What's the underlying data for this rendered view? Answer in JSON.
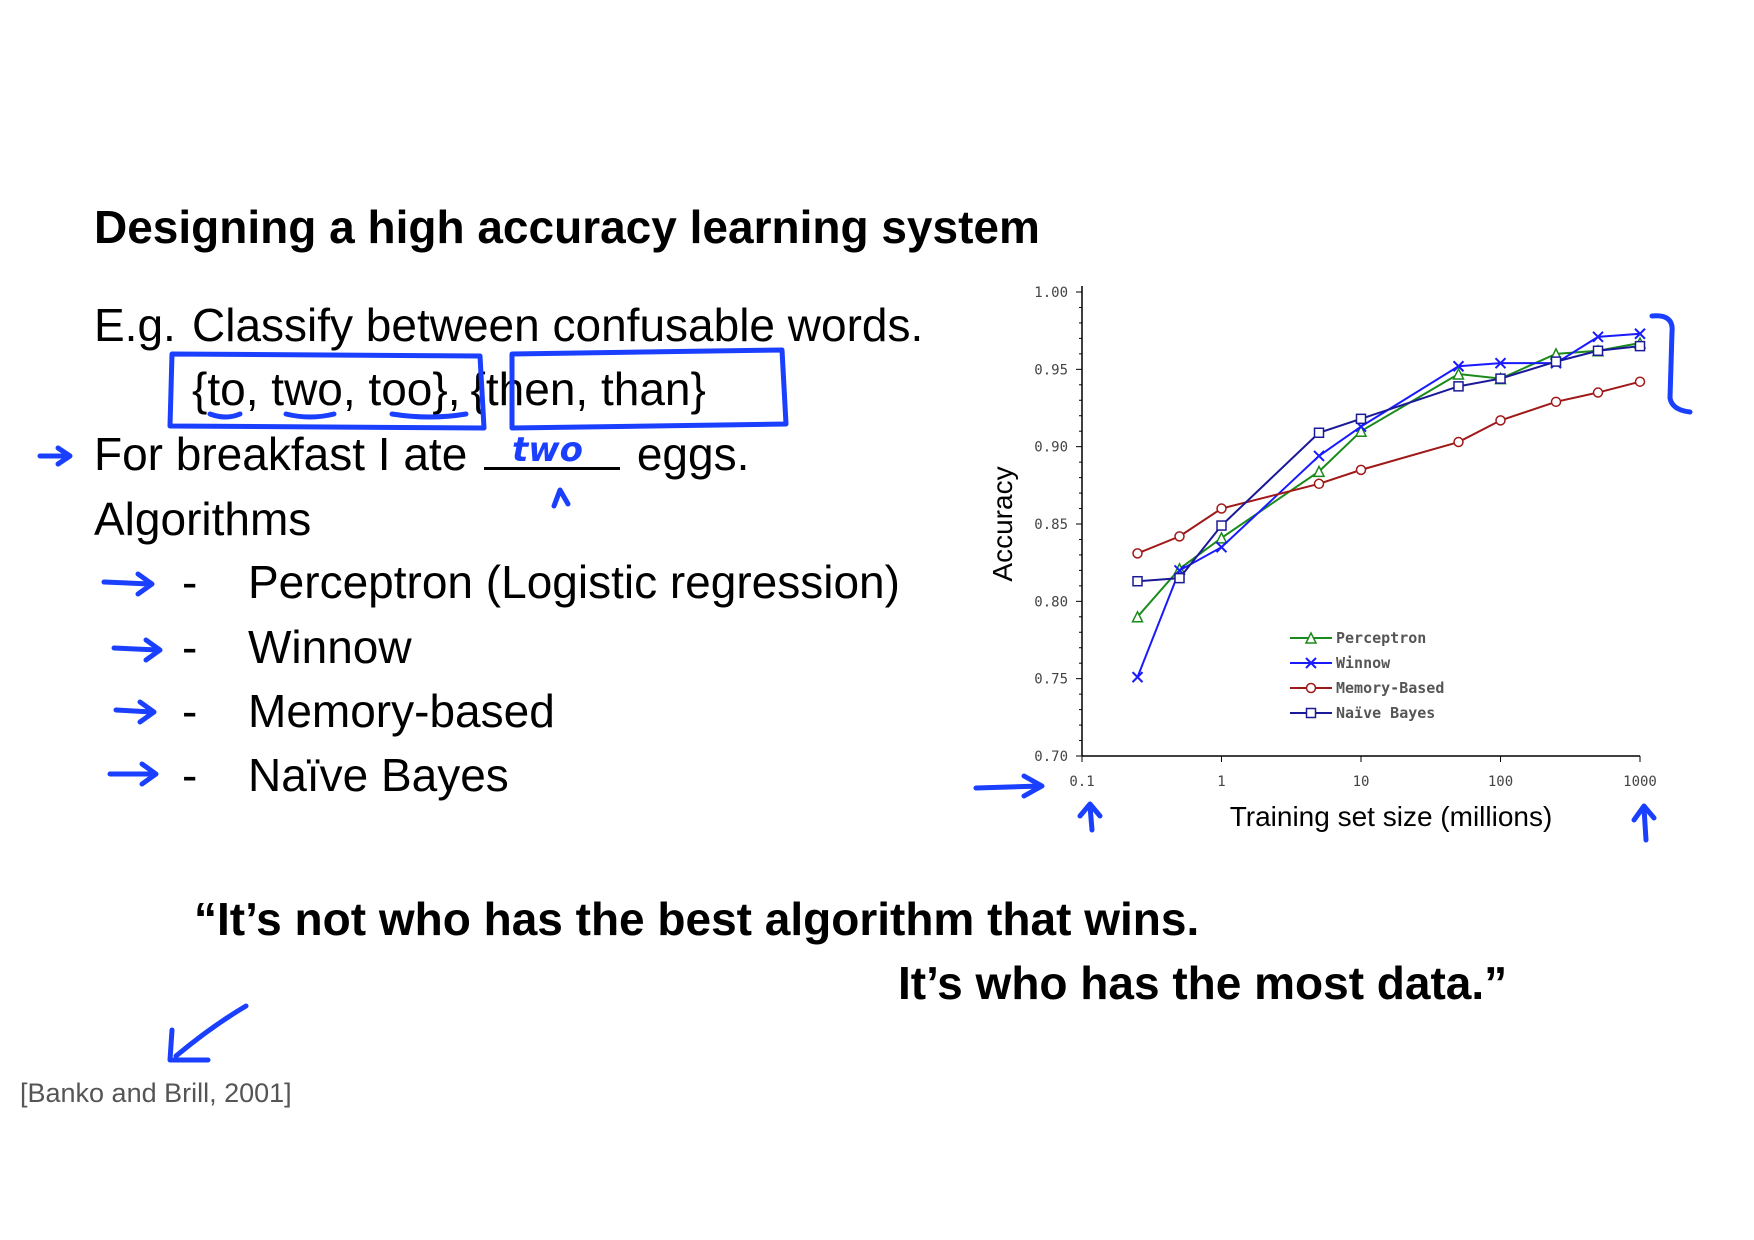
{
  "slide": {
    "title": "Designing a high accuracy learning system",
    "example_label": "E.g.",
    "example_text": "Classify between confusable words.",
    "set1": "{to, two, too},",
    "set2": "{then, than}",
    "sentence_before": "For breakfast I ate",
    "sentence_after": "eggs.",
    "algorithms_heading": "Algorithms",
    "algorithms": [
      {
        "dash": "-",
        "name": "Perceptron (Logistic regression)"
      },
      {
        "dash": "-",
        "name": "Winnow"
      },
      {
        "dash": "-",
        "name": "Memory-based"
      },
      {
        "dash": "-",
        "name": "Naïve Bayes"
      }
    ],
    "quote_line1": "“It’s not who has the best algorithm that wins.",
    "quote_line2": "It’s who has the most data.”",
    "citation": "[Banko and Brill, 2001]"
  },
  "annotations": {
    "handwritten_word": "two",
    "ink_color": "#1a3fff"
  },
  "chart_data": {
    "type": "line",
    "xlabel": "Training set size (millions)",
    "ylabel": "Accuracy",
    "x_scale": "log",
    "xlim": [
      0.1,
      1000
    ],
    "ylim": [
      0.7,
      1.0
    ],
    "x_ticks": [
      "0.1",
      "1",
      "10",
      "100",
      "1000"
    ],
    "y_ticks": [
      "0.70",
      "0.75",
      "0.80",
      "0.85",
      "0.90",
      "0.95",
      "1.00"
    ],
    "x": [
      0.25,
      0.5,
      1,
      5,
      10,
      50,
      100,
      250,
      500,
      1000
    ],
    "series": [
      {
        "name": "Perceptron",
        "marker": "triangle",
        "color": "#1a8a1a",
        "values": [
          0.79,
          0.821,
          0.841,
          0.884,
          0.91,
          0.947,
          0.944,
          0.96,
          0.962,
          0.967
        ]
      },
      {
        "name": "Winnow",
        "marker": "x",
        "color": "#1a1aff",
        "values": [
          0.751,
          0.82,
          0.835,
          0.894,
          0.913,
          0.952,
          0.954,
          0.954,
          0.971,
          0.973
        ]
      },
      {
        "name": "Memory-Based",
        "marker": "circle",
        "color": "#a01818",
        "values": [
          0.831,
          0.842,
          0.86,
          0.876,
          0.885,
          0.903,
          0.917,
          0.929,
          0.935,
          0.942
        ]
      },
      {
        "name": "Naïve Bayes",
        "marker": "square",
        "color": "#1a1a99",
        "values": [
          0.813,
          0.815,
          0.849,
          0.909,
          0.918,
          0.939,
          0.944,
          0.955,
          0.962,
          0.965
        ]
      }
    ],
    "legend_position": "bottom-right",
    "grid": false
  }
}
